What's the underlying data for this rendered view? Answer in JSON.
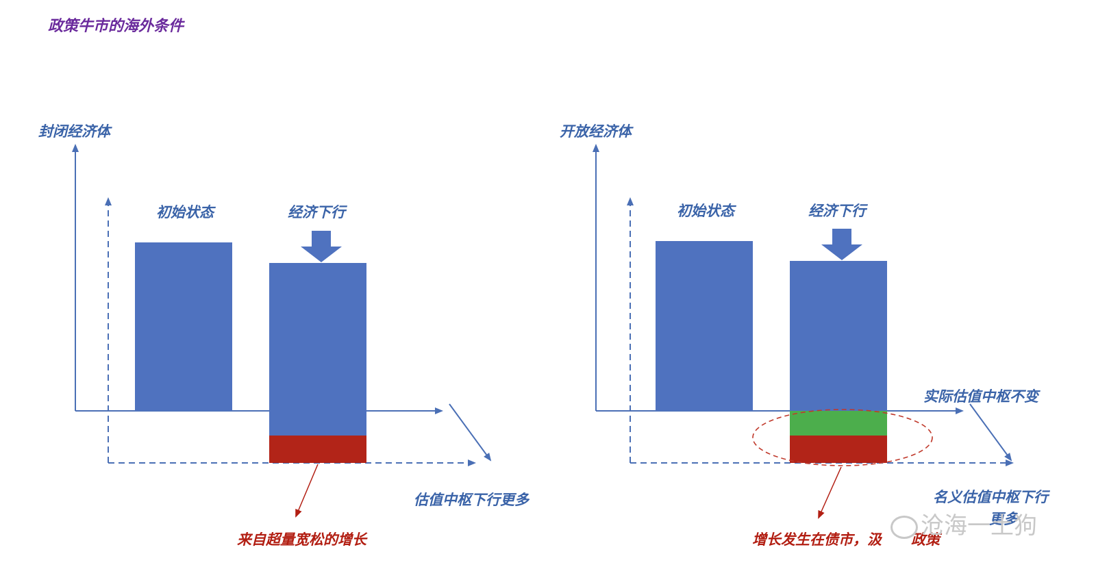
{
  "title": "政策牛市的海外条件",
  "left_panel": {
    "heading": "封闭经济体",
    "bar1_label": "初始状态",
    "bar2_label": "经济下行",
    "axis_label": "估值中枢下行更多",
    "annotation": "来自超量宽松的增长"
  },
  "right_panel": {
    "heading": "开放经济体",
    "bar1_label": "初始状态",
    "bar2_label": "经济下行",
    "axis_label_1": "实际估值中枢不变",
    "axis_label_2": "名义估值中枢下行",
    "axis_label_2b": "更多",
    "annotation": "增长发生在债市，汲",
    "annotation_tail": "政策"
  },
  "watermark": "沧海一土狗",
  "colors": {
    "bar_blue": "#4f72bf",
    "bar_red": "#b22418",
    "bar_green": "#4cae4c",
    "axis": "#4a6fb5",
    "text_blue": "#3a63a8",
    "text_red": "#b21e12",
    "title_purple": "#6a2a9c"
  }
}
